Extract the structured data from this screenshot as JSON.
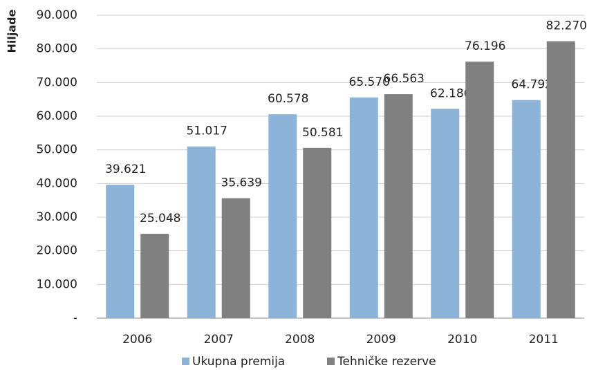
{
  "chart_data": {
    "type": "bar",
    "y_label": "Hiljade",
    "categories": [
      "2006",
      "2007",
      "2008",
      "2009",
      "2010",
      "2011"
    ],
    "series": [
      {
        "name": "Ukupna premija",
        "color": "#8cb4d9",
        "values": [
          39621,
          51017,
          60578,
          65570,
          62186,
          64792
        ],
        "value_labels": [
          "39.621",
          "51.017",
          "60.578",
          "65.570",
          "62.186",
          "64.792"
        ]
      },
      {
        "name": "Tehničke rezerve",
        "color": "#808080",
        "values": [
          25048,
          35639,
          50581,
          66563,
          76196,
          82270
        ],
        "value_labels": [
          "25.048",
          "35.639",
          "50.581",
          "66.563",
          "76.196",
          "82.270"
        ]
      }
    ],
    "ylim": [
      0,
      90000
    ],
    "yticks": [
      {
        "value": 0,
        "label": "-"
      },
      {
        "value": 10000,
        "label": "10.000"
      },
      {
        "value": 20000,
        "label": "20.000"
      },
      {
        "value": 30000,
        "label": "30.000"
      },
      {
        "value": 40000,
        "label": "40.000"
      },
      {
        "value": 50000,
        "label": "50.000"
      },
      {
        "value": 60000,
        "label": "60.000"
      },
      {
        "value": 70000,
        "label": "70.000"
      },
      {
        "value": 80000,
        "label": "80.000"
      },
      {
        "value": 90000,
        "label": "90.000"
      }
    ],
    "grid": true,
    "legend": "bottom"
  }
}
